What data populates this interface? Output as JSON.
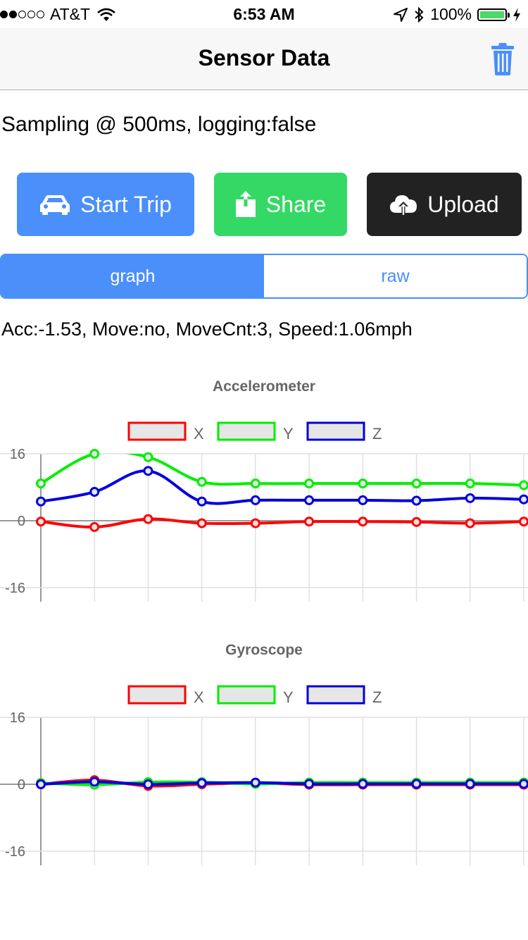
{
  "status_bar": {
    "carrier": "AT&T",
    "time": "6:53 AM",
    "battery": "100%",
    "battery_level": 1.0,
    "signal_bars_filled": 2,
    "signal_bars_total": 5
  },
  "nav": {
    "title": "Sensor Data",
    "trash_icon": "trash-icon"
  },
  "sampling_text": "Sampling @ 500ms, logging:false",
  "buttons": {
    "start_trip": {
      "label": "Start Trip",
      "icon": "car-icon",
      "color": "#4a8ffa"
    },
    "share": {
      "label": "Share",
      "icon": "share-icon",
      "color": "#34d965"
    },
    "upload": {
      "label": "Upload",
      "icon": "cloud-upload-icon",
      "color": "#222222"
    }
  },
  "segments": {
    "graph": "graph",
    "raw": "raw",
    "selected": "graph"
  },
  "status_line": "Acc:-1.53, Move:no, MoveCnt:3, Speed:1.06mph",
  "chart_data": [
    {
      "type": "line",
      "title": "Accelerometer",
      "ylim": [
        -16,
        16
      ],
      "yticks": [
        "16",
        "0",
        "-16"
      ],
      "x": [
        0,
        1,
        2,
        3,
        4,
        5,
        6,
        7,
        8,
        9
      ],
      "legend_position": "top",
      "grid": true,
      "series": [
        {
          "name": "X",
          "color": "#ff0000",
          "values": [
            -0.2,
            -1.5,
            0.4,
            -0.6,
            -0.6,
            -0.2,
            -0.2,
            -0.3,
            -0.6,
            -0.2
          ]
        },
        {
          "name": "Y",
          "color": "#00ee00",
          "values": [
            8.9,
            16.0,
            15.2,
            9.3,
            8.9,
            8.9,
            8.9,
            8.9,
            8.9,
            8.5
          ]
        },
        {
          "name": "Z",
          "color": "#0000dd",
          "values": [
            4.6,
            6.9,
            11.9,
            4.6,
            4.9,
            4.9,
            4.9,
            4.8,
            5.4,
            5.1
          ]
        }
      ]
    },
    {
      "type": "line",
      "title": "Gyroscope",
      "ylim": [
        -16,
        16
      ],
      "yticks": [
        "16",
        "0",
        "-16"
      ],
      "x": [
        0,
        1,
        2,
        3,
        4,
        5,
        6,
        7,
        8,
        9
      ],
      "legend_position": "top",
      "grid": true,
      "series": [
        {
          "name": "X",
          "color": "#ff0000",
          "values": [
            0.0,
            1.0,
            -0.4,
            0.0,
            0.3,
            -0.1,
            -0.1,
            -0.1,
            -0.1,
            -0.1
          ]
        },
        {
          "name": "Y",
          "color": "#00ee00",
          "values": [
            0.3,
            -0.1,
            0.5,
            0.5,
            0.1,
            0.4,
            0.4,
            0.4,
            0.4,
            0.4
          ]
        },
        {
          "name": "Z",
          "color": "#0000dd",
          "values": [
            0.0,
            0.6,
            0.0,
            0.3,
            0.4,
            0.1,
            0.1,
            0.1,
            0.1,
            0.1
          ]
        }
      ]
    }
  ]
}
